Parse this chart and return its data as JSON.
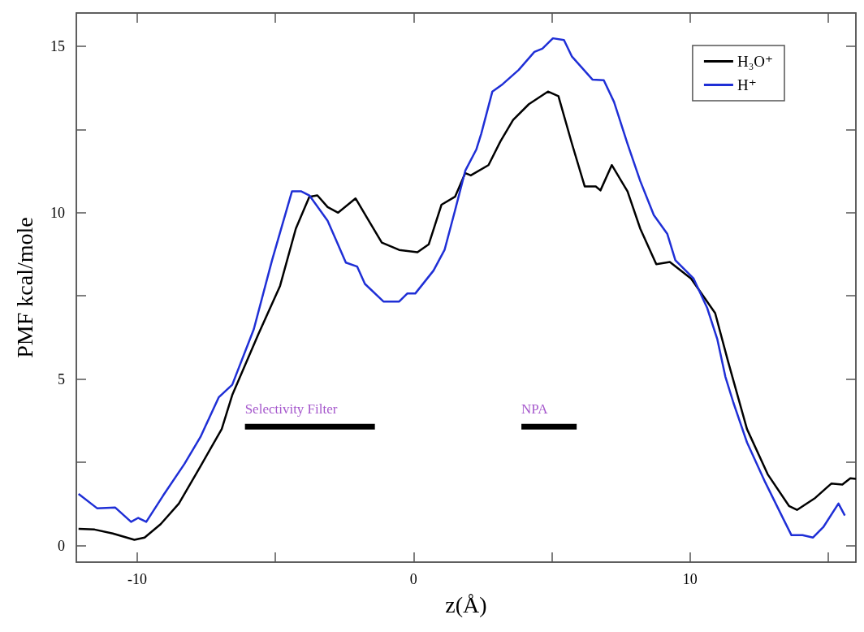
{
  "chart_data": {
    "type": "line",
    "xlabel": "z(Å)",
    "ylabel": "PMF kcal/mole",
    "xlim": [
      -12.2,
      16
    ],
    "ylim": [
      -0.5,
      16
    ],
    "xticks": [
      -10,
      {
        "value": -5,
        "label": null
      },
      0,
      {
        "value": 5,
        "label": null
      },
      10,
      {
        "value": 15,
        "label": null
      }
    ],
    "yticks": [
      0,
      {
        "value": 2.5,
        "label": null
      },
      5,
      {
        "value": 7.5,
        "label": null
      },
      10,
      {
        "value": 12.5,
        "label": null
      },
      15
    ],
    "grid": false,
    "legend": "top right",
    "marker": "none",
    "line_style": "solid",
    "series": [
      {
        "name": "H₃O⁺",
        "color": "#000000",
        "x": [
          -12.12,
          -11.54,
          -10.88,
          -10.1,
          -9.73,
          -9.15,
          -8.49,
          -7.71,
          -6.94,
          -6.56,
          -5.61,
          -4.83,
          -4.26,
          -3.77,
          -3.48,
          -3.11,
          -2.73,
          -2.1,
          -1.67,
          -1.15,
          -0.52,
          0.14,
          0.55,
          1.01,
          1.5,
          1.87,
          2.07,
          2.71,
          3.14,
          3.6,
          4.17,
          4.86,
          5.24,
          5.73,
          6.19,
          6.59,
          6.76,
          7.17,
          7.74,
          8.2,
          8.78,
          9.27,
          10.04,
          10.91,
          11.37,
          12.06,
          12.81,
          13.58,
          13.87,
          14.53,
          15.11,
          15.51,
          15.8,
          16
        ],
        "values": [
          0.5,
          0.48,
          0.36,
          0.17,
          0.24,
          0.64,
          1.26,
          2.38,
          3.5,
          4.52,
          6.36,
          7.8,
          9.52,
          10.48,
          10.52,
          10.17,
          10.0,
          10.43,
          9.83,
          9.1,
          8.88,
          8.81,
          9.05,
          10.24,
          10.48,
          11.19,
          11.12,
          11.43,
          12.14,
          12.79,
          13.26,
          13.64,
          13.5,
          12.07,
          10.79,
          10.79,
          10.67,
          11.43,
          10.64,
          9.52,
          8.45,
          8.52,
          8.02,
          6.98,
          5.55,
          3.5,
          2.14,
          1.19,
          1.07,
          1.43,
          1.86,
          1.83,
          2.02,
          2.0
        ]
      },
      {
        "name": "H⁺",
        "color": "#1f2fd6",
        "x": [
          -12.12,
          -11.45,
          -10.79,
          -10.22,
          -9.96,
          -9.67,
          -9.06,
          -8.29,
          -7.71,
          -7.05,
          -6.56,
          -5.78,
          -5.12,
          -4.4,
          -4.06,
          -3.77,
          -3.11,
          -2.82,
          -2.45,
          -2.04,
          -1.76,
          -1.09,
          -0.52,
          -0.23,
          0.06,
          0.72,
          1.12,
          1.5,
          1.87,
          2.27,
          2.45,
          2.85,
          3.22,
          3.8,
          4.37,
          4.66,
          5.04,
          5.44,
          5.73,
          6.47,
          6.88,
          7.25,
          7.74,
          8.2,
          8.69,
          9.18,
          9.47,
          10.13,
          10.62,
          10.99,
          11.28,
          11.57,
          12.06,
          12.72,
          13.38,
          13.67,
          14.07,
          14.45,
          14.82,
          15.37,
          15.6
        ],
        "values": [
          1.55,
          1.12,
          1.14,
          0.71,
          0.83,
          0.71,
          1.5,
          2.45,
          3.26,
          4.45,
          4.83,
          6.5,
          8.57,
          10.64,
          10.64,
          10.52,
          9.76,
          9.21,
          8.5,
          8.38,
          7.86,
          7.33,
          7.33,
          7.57,
          7.57,
          8.26,
          8.88,
          10.07,
          11.26,
          11.9,
          12.38,
          13.64,
          13.86,
          14.29,
          14.83,
          14.93,
          15.24,
          15.19,
          14.69,
          14.0,
          13.98,
          13.33,
          12.07,
          10.95,
          9.93,
          9.36,
          8.57,
          8.02,
          7.14,
          6.19,
          5.07,
          4.29,
          3.1,
          1.9,
          0.79,
          0.31,
          0.31,
          0.24,
          0.55,
          1.26,
          0.9
        ]
      },
      {
        "color": "#000000",
        "x": [
          -6.1,
          -1.4
        ],
        "values": [
          3.57,
          3.57
        ]
      },
      {
        "color": "#000000",
        "x": [
          3.9,
          5.9
        ],
        "values": [
          3.57,
          3.57
        ]
      }
    ],
    "annotations": [
      "Selectivity Filter",
      "NPA"
    ]
  }
}
